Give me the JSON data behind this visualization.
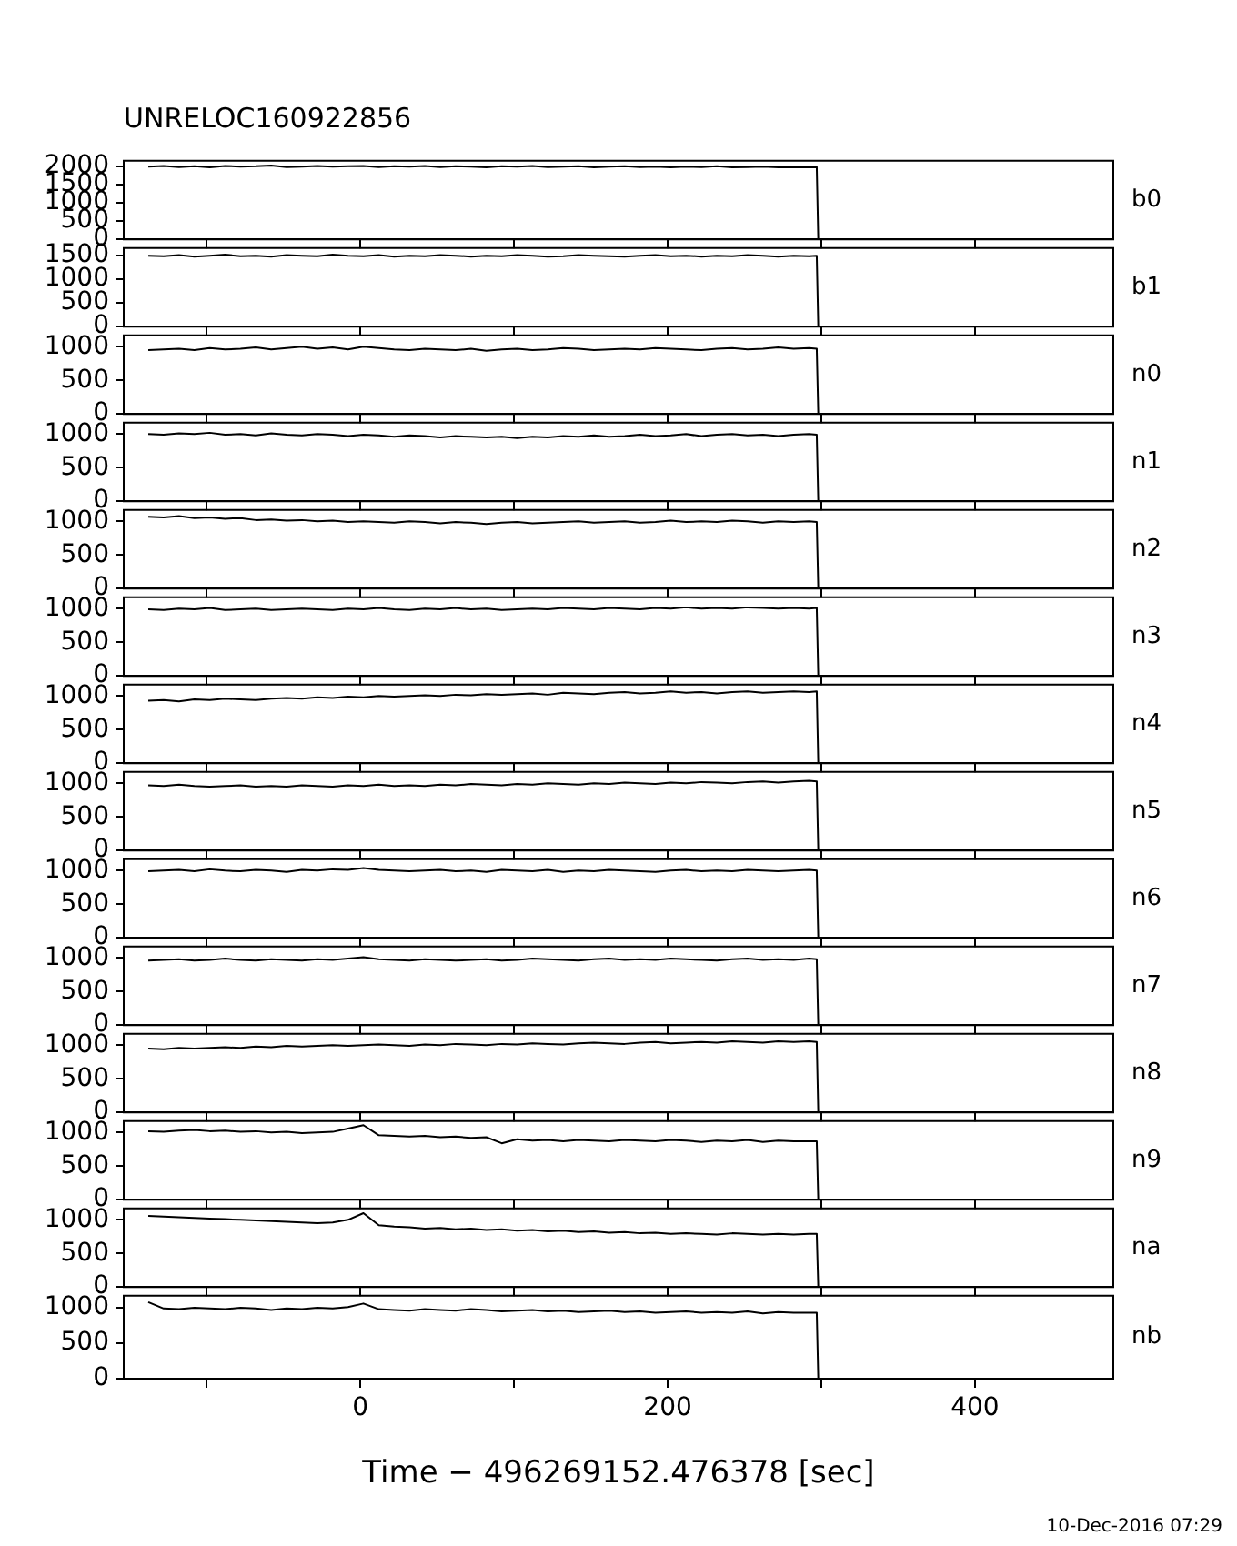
{
  "chart_data": [
    {
      "type": "line",
      "title": "UNRELOC160922856",
      "x": [
        -138,
        -128,
        -118,
        -108,
        -98,
        -88,
        -78,
        -68,
        -58,
        -48,
        -38,
        -28,
        -18,
        -8,
        2,
        12,
        22,
        32,
        42,
        52,
        62,
        72,
        82,
        92,
        102,
        112,
        122,
        132,
        142,
        152,
        162,
        172,
        182,
        192,
        202,
        212,
        222,
        232,
        242,
        252,
        262,
        272,
        282,
        292,
        297,
        298,
        476
      ],
      "xlim": [
        -154,
        490
      ],
      "xticks": [
        {
          "value": -100,
          "label": null
        },
        {
          "value": 0,
          "label": null
        },
        {
          "value": 100,
          "label": null
        },
        {
          "value": 200,
          "label": null
        },
        {
          "value": 300,
          "label": null
        },
        {
          "value": 400,
          "label": null
        }
      ],
      "ylim": [
        0,
        2150
      ],
      "yticks": [
        0,
        500,
        1000,
        1500,
        2000
      ],
      "tick_labels": "y",
      "series": [
        {
          "name": "b0",
          "color": "#000000",
          "values": [
            1990,
            2010,
            1980,
            2000,
            1970,
            2010,
            1990,
            2000,
            2020,
            1980,
            1990,
            2010,
            1990,
            2000,
            2010,
            1980,
            2000,
            1990,
            2010,
            1980,
            2000,
            1990,
            1970,
            2000,
            1990,
            2010,
            1980,
            1990,
            2000,
            1970,
            1990,
            2000,
            1980,
            1990,
            1970,
            1990,
            1980,
            2000,
            1970,
            1980,
            1990,
            1970,
            1980,
            1970,
            1980,
            0,
            0
          ]
        }
      ]
    },
    {
      "type": "line",
      "x": [
        -138,
        -128,
        -118,
        -108,
        -98,
        -88,
        -78,
        -68,
        -58,
        -48,
        -38,
        -28,
        -18,
        -8,
        2,
        12,
        22,
        32,
        42,
        52,
        62,
        72,
        82,
        92,
        102,
        112,
        122,
        132,
        142,
        152,
        162,
        172,
        182,
        192,
        202,
        212,
        222,
        232,
        242,
        252,
        262,
        272,
        282,
        292,
        297,
        298,
        476
      ],
      "xlim": [
        -154,
        490
      ],
      "xticks": [
        {
          "value": -100,
          "label": null
        },
        {
          "value": 0,
          "label": null
        },
        {
          "value": 100,
          "label": null
        },
        {
          "value": 200,
          "label": null
        },
        {
          "value": 300,
          "label": null
        },
        {
          "value": 400,
          "label": null
        }
      ],
      "ylim": [
        0,
        1660
      ],
      "yticks": [
        0,
        500,
        1000,
        1500
      ],
      "tick_labels": "y",
      "series": [
        {
          "name": "b1",
          "color": "#000000",
          "values": [
            1500,
            1490,
            1510,
            1480,
            1500,
            1520,
            1490,
            1500,
            1480,
            1510,
            1500,
            1490,
            1520,
            1500,
            1490,
            1510,
            1480,
            1500,
            1490,
            1510,
            1500,
            1480,
            1500,
            1490,
            1510,
            1500,
            1480,
            1490,
            1510,
            1500,
            1490,
            1480,
            1500,
            1510,
            1490,
            1500,
            1480,
            1500,
            1490,
            1510,
            1500,
            1480,
            1500,
            1490,
            1500,
            0,
            0
          ]
        }
      ]
    },
    {
      "type": "line",
      "x": [
        -138,
        -128,
        -118,
        -108,
        -98,
        -88,
        -78,
        -68,
        -58,
        -48,
        -38,
        -28,
        -18,
        -8,
        2,
        12,
        22,
        32,
        42,
        52,
        62,
        72,
        82,
        92,
        102,
        112,
        122,
        132,
        142,
        152,
        162,
        172,
        182,
        192,
        202,
        212,
        222,
        232,
        242,
        252,
        262,
        272,
        282,
        292,
        297,
        298,
        476
      ],
      "xlim": [
        -154,
        490
      ],
      "xticks": [
        {
          "value": -100,
          "label": null
        },
        {
          "value": 0,
          "label": null
        },
        {
          "value": 100,
          "label": null
        },
        {
          "value": 200,
          "label": null
        },
        {
          "value": 300,
          "label": null
        },
        {
          "value": 400,
          "label": null
        }
      ],
      "ylim": [
        0,
        1170
      ],
      "yticks": [
        0,
        500,
        1000
      ],
      "tick_labels": "y",
      "series": [
        {
          "name": "n0",
          "color": "#000000",
          "values": [
            950,
            960,
            970,
            950,
            980,
            960,
            970,
            990,
            960,
            980,
            1000,
            970,
            990,
            960,
            1000,
            980,
            960,
            950,
            970,
            960,
            950,
            970,
            940,
            960,
            970,
            950,
            960,
            980,
            970,
            950,
            960,
            970,
            960,
            980,
            970,
            960,
            950,
            970,
            980,
            960,
            970,
            990,
            970,
            980,
            970,
            0,
            0
          ]
        }
      ]
    },
    {
      "type": "line",
      "x": [
        -138,
        -128,
        -118,
        -108,
        -98,
        -88,
        -78,
        -68,
        -58,
        -48,
        -38,
        -28,
        -18,
        -8,
        2,
        12,
        22,
        32,
        42,
        52,
        62,
        72,
        82,
        92,
        102,
        112,
        122,
        132,
        142,
        152,
        162,
        172,
        182,
        192,
        202,
        212,
        222,
        232,
        242,
        252,
        262,
        272,
        282,
        292,
        297,
        298,
        476
      ],
      "xlim": [
        -154,
        490
      ],
      "xticks": [
        {
          "value": -100,
          "label": null
        },
        {
          "value": 0,
          "label": null
        },
        {
          "value": 100,
          "label": null
        },
        {
          "value": 200,
          "label": null
        },
        {
          "value": 300,
          "label": null
        },
        {
          "value": 400,
          "label": null
        }
      ],
      "ylim": [
        0,
        1170
      ],
      "yticks": [
        0,
        500,
        1000
      ],
      "tick_labels": "y",
      "series": [
        {
          "name": "n1",
          "color": "#000000",
          "values": [
            1000,
            990,
            1010,
            1000,
            1020,
            990,
            1000,
            980,
            1010,
            990,
            980,
            1000,
            990,
            970,
            990,
            980,
            960,
            980,
            970,
            950,
            970,
            960,
            950,
            960,
            940,
            960,
            950,
            970,
            960,
            980,
            960,
            970,
            990,
            970,
            980,
            1000,
            970,
            990,
            1000,
            980,
            990,
            970,
            990,
            1000,
            990,
            0,
            0
          ]
        }
      ]
    },
    {
      "type": "line",
      "x": [
        -138,
        -128,
        -118,
        -108,
        -98,
        -88,
        -78,
        -68,
        -58,
        -48,
        -38,
        -28,
        -18,
        -8,
        2,
        12,
        22,
        32,
        42,
        52,
        62,
        72,
        82,
        92,
        102,
        112,
        122,
        132,
        142,
        152,
        162,
        172,
        182,
        192,
        202,
        212,
        222,
        232,
        242,
        252,
        262,
        272,
        282,
        292,
        297,
        298,
        476
      ],
      "xlim": [
        -154,
        490
      ],
      "xticks": [
        {
          "value": -100,
          "label": null
        },
        {
          "value": 0,
          "label": null
        },
        {
          "value": 100,
          "label": null
        },
        {
          "value": 200,
          "label": null
        },
        {
          "value": 300,
          "label": null
        },
        {
          "value": 400,
          "label": null
        }
      ],
      "ylim": [
        0,
        1170
      ],
      "yticks": [
        0,
        500,
        1000
      ],
      "tick_labels": "y",
      "series": [
        {
          "name": "n2",
          "color": "#000000",
          "values": [
            1070,
            1060,
            1080,
            1050,
            1060,
            1040,
            1050,
            1020,
            1030,
            1010,
            1020,
            1000,
            1010,
            990,
            1000,
            990,
            980,
            1000,
            990,
            970,
            990,
            980,
            960,
            980,
            990,
            970,
            980,
            990,
            1000,
            980,
            990,
            1000,
            980,
            990,
            1010,
            990,
            1000,
            990,
            1010,
            1000,
            980,
            1000,
            990,
            1000,
            990,
            0,
            0
          ]
        }
      ]
    },
    {
      "type": "line",
      "x": [
        -138,
        -128,
        -118,
        -108,
        -98,
        -88,
        -78,
        -68,
        -58,
        -48,
        -38,
        -28,
        -18,
        -8,
        2,
        12,
        22,
        32,
        42,
        52,
        62,
        72,
        82,
        92,
        102,
        112,
        122,
        132,
        142,
        152,
        162,
        172,
        182,
        192,
        202,
        212,
        222,
        232,
        242,
        252,
        262,
        272,
        282,
        292,
        297,
        298,
        476
      ],
      "xlim": [
        -154,
        490
      ],
      "xticks": [
        {
          "value": -100,
          "label": null
        },
        {
          "value": 0,
          "label": null
        },
        {
          "value": 100,
          "label": null
        },
        {
          "value": 200,
          "label": null
        },
        {
          "value": 300,
          "label": null
        },
        {
          "value": 400,
          "label": null
        }
      ],
      "ylim": [
        0,
        1170
      ],
      "yticks": [
        0,
        500,
        1000
      ],
      "tick_labels": "y",
      "series": [
        {
          "name": "n3",
          "color": "#000000",
          "values": [
            990,
            980,
            1000,
            990,
            1010,
            980,
            990,
            1000,
            980,
            990,
            1000,
            990,
            980,
            1000,
            990,
            1010,
            990,
            980,
            1000,
            990,
            1010,
            990,
            1000,
            980,
            990,
            1000,
            990,
            1010,
            1000,
            990,
            1010,
            1000,
            990,
            1010,
            1000,
            1020,
            1000,
            1010,
            1000,
            1020,
            1010,
            1000,
            1010,
            1000,
            1010,
            0,
            0
          ]
        }
      ]
    },
    {
      "type": "line",
      "x": [
        -138,
        -128,
        -118,
        -108,
        -98,
        -88,
        -78,
        -68,
        -58,
        -48,
        -38,
        -28,
        -18,
        -8,
        2,
        12,
        22,
        32,
        42,
        52,
        62,
        72,
        82,
        92,
        102,
        112,
        122,
        132,
        142,
        152,
        162,
        172,
        182,
        192,
        202,
        212,
        222,
        232,
        242,
        252,
        262,
        272,
        282,
        292,
        297,
        298,
        476
      ],
      "xlim": [
        -154,
        490
      ],
      "xticks": [
        {
          "value": -100,
          "label": null
        },
        {
          "value": 0,
          "label": null
        },
        {
          "value": 100,
          "label": null
        },
        {
          "value": 200,
          "label": null
        },
        {
          "value": 300,
          "label": null
        },
        {
          "value": 400,
          "label": null
        }
      ],
      "ylim": [
        0,
        1170
      ],
      "yticks": [
        0,
        500,
        1000
      ],
      "tick_labels": "y",
      "series": [
        {
          "name": "n4",
          "color": "#000000",
          "values": [
            930,
            940,
            920,
            950,
            940,
            960,
            950,
            940,
            960,
            970,
            960,
            980,
            970,
            990,
            980,
            1000,
            990,
            1000,
            1010,
            1000,
            1020,
            1010,
            1030,
            1020,
            1030,
            1040,
            1020,
            1050,
            1040,
            1030,
            1050,
            1060,
            1040,
            1050,
            1070,
            1050,
            1060,
            1040,
            1060,
            1070,
            1050,
            1060,
            1070,
            1060,
            1070,
            0,
            0
          ]
        }
      ]
    },
    {
      "type": "line",
      "x": [
        -138,
        -128,
        -118,
        -108,
        -98,
        -88,
        -78,
        -68,
        -58,
        -48,
        -38,
        -28,
        -18,
        -8,
        2,
        12,
        22,
        32,
        42,
        52,
        62,
        72,
        82,
        92,
        102,
        112,
        122,
        132,
        142,
        152,
        162,
        172,
        182,
        192,
        202,
        212,
        222,
        232,
        242,
        252,
        262,
        272,
        282,
        292,
        297,
        298,
        476
      ],
      "xlim": [
        -154,
        490
      ],
      "xticks": [
        {
          "value": -100,
          "label": null
        },
        {
          "value": 0,
          "label": null
        },
        {
          "value": 100,
          "label": null
        },
        {
          "value": 200,
          "label": null
        },
        {
          "value": 300,
          "label": null
        },
        {
          "value": 400,
          "label": null
        }
      ],
      "ylim": [
        0,
        1170
      ],
      "yticks": [
        0,
        500,
        1000
      ],
      "tick_labels": "y",
      "series": [
        {
          "name": "n5",
          "color": "#000000",
          "values": [
            970,
            960,
            980,
            960,
            950,
            960,
            970,
            950,
            960,
            950,
            970,
            960,
            950,
            970,
            960,
            980,
            960,
            970,
            960,
            980,
            970,
            990,
            980,
            970,
            990,
            980,
            1000,
            990,
            980,
            1000,
            990,
            1010,
            1000,
            990,
            1010,
            1000,
            1020,
            1010,
            1000,
            1020,
            1030,
            1010,
            1030,
            1040,
            1030,
            0,
            0
          ]
        }
      ]
    },
    {
      "type": "line",
      "x": [
        -138,
        -128,
        -118,
        -108,
        -98,
        -88,
        -78,
        -68,
        -58,
        -48,
        -38,
        -28,
        -18,
        -8,
        2,
        12,
        22,
        32,
        42,
        52,
        62,
        72,
        82,
        92,
        102,
        112,
        122,
        132,
        142,
        152,
        162,
        172,
        182,
        192,
        202,
        212,
        222,
        232,
        242,
        252,
        262,
        272,
        282,
        292,
        297,
        298,
        476
      ],
      "xlim": [
        -154,
        490
      ],
      "xticks": [
        {
          "value": -100,
          "label": null
        },
        {
          "value": 0,
          "label": null
        },
        {
          "value": 100,
          "label": null
        },
        {
          "value": 200,
          "label": null
        },
        {
          "value": 300,
          "label": null
        },
        {
          "value": 400,
          "label": null
        }
      ],
      "ylim": [
        0,
        1170
      ],
      "yticks": [
        0,
        500,
        1000
      ],
      "tick_labels": "y",
      "series": [
        {
          "name": "n6",
          "color": "#000000",
          "values": [
            990,
            1000,
            1010,
            990,
            1020,
            1000,
            990,
            1010,
            1000,
            980,
            1010,
            1000,
            1020,
            1010,
            1040,
            1010,
            1000,
            990,
            1000,
            1010,
            990,
            1000,
            980,
            1010,
            1000,
            990,
            1010,
            980,
            1000,
            990,
            1010,
            1000,
            990,
            980,
            1000,
            1010,
            990,
            1000,
            990,
            1010,
            1000,
            990,
            1000,
            1010,
            1000,
            0,
            0
          ]
        }
      ]
    },
    {
      "type": "line",
      "x": [
        -138,
        -128,
        -118,
        -108,
        -98,
        -88,
        -78,
        -68,
        -58,
        -48,
        -38,
        -28,
        -18,
        -8,
        2,
        12,
        22,
        32,
        42,
        52,
        62,
        72,
        82,
        92,
        102,
        112,
        122,
        132,
        142,
        152,
        162,
        172,
        182,
        192,
        202,
        212,
        222,
        232,
        242,
        252,
        262,
        272,
        282,
        292,
        297,
        298,
        476
      ],
      "xlim": [
        -154,
        490
      ],
      "xticks": [
        {
          "value": -100,
          "label": null
        },
        {
          "value": 0,
          "label": null
        },
        {
          "value": 100,
          "label": null
        },
        {
          "value": 200,
          "label": null
        },
        {
          "value": 300,
          "label": null
        },
        {
          "value": 400,
          "label": null
        }
      ],
      "ylim": [
        0,
        1170
      ],
      "yticks": [
        0,
        500,
        1000
      ],
      "tick_labels": "y",
      "series": [
        {
          "name": "n7",
          "color": "#000000",
          "values": [
            960,
            970,
            980,
            960,
            970,
            990,
            970,
            960,
            980,
            970,
            960,
            980,
            970,
            990,
            1010,
            980,
            970,
            960,
            980,
            970,
            960,
            970,
            980,
            960,
            970,
            990,
            980,
            970,
            960,
            980,
            990,
            970,
            980,
            970,
            990,
            980,
            970,
            960,
            980,
            990,
            970,
            980,
            970,
            990,
            980,
            0,
            0
          ]
        }
      ]
    },
    {
      "type": "line",
      "x": [
        -138,
        -128,
        -118,
        -108,
        -98,
        -88,
        -78,
        -68,
        -58,
        -48,
        -38,
        -28,
        -18,
        -8,
        2,
        12,
        22,
        32,
        42,
        52,
        62,
        72,
        82,
        92,
        102,
        112,
        122,
        132,
        142,
        152,
        162,
        172,
        182,
        192,
        202,
        212,
        222,
        232,
        242,
        252,
        262,
        272,
        282,
        292,
        297,
        298,
        476
      ],
      "xlim": [
        -154,
        490
      ],
      "xticks": [
        {
          "value": -100,
          "label": null
        },
        {
          "value": 0,
          "label": null
        },
        {
          "value": 100,
          "label": null
        },
        {
          "value": 200,
          "label": null
        },
        {
          "value": 300,
          "label": null
        },
        {
          "value": 400,
          "label": null
        }
      ],
      "ylim": [
        0,
        1170
      ],
      "yticks": [
        0,
        500,
        1000
      ],
      "tick_labels": "y",
      "series": [
        {
          "name": "n8",
          "color": "#000000",
          "values": [
            950,
            940,
            960,
            950,
            960,
            970,
            960,
            980,
            970,
            990,
            980,
            990,
            1000,
            990,
            1000,
            1010,
            1000,
            990,
            1010,
            1000,
            1020,
            1010,
            1000,
            1020,
            1010,
            1030,
            1020,
            1010,
            1030,
            1040,
            1030,
            1020,
            1040,
            1050,
            1030,
            1040,
            1050,
            1040,
            1060,
            1050,
            1040,
            1060,
            1050,
            1060,
            1050,
            0,
            0
          ]
        }
      ]
    },
    {
      "type": "line",
      "x": [
        -138,
        -128,
        -118,
        -108,
        -98,
        -88,
        -78,
        -68,
        -58,
        -48,
        -38,
        -28,
        -18,
        -8,
        2,
        12,
        22,
        32,
        42,
        52,
        62,
        72,
        82,
        92,
        102,
        112,
        122,
        132,
        142,
        152,
        162,
        172,
        182,
        192,
        202,
        212,
        222,
        232,
        242,
        252,
        262,
        272,
        282,
        292,
        297,
        298,
        476
      ],
      "xlim": [
        -154,
        490
      ],
      "xticks": [
        {
          "value": -100,
          "label": null
        },
        {
          "value": 0,
          "label": null
        },
        {
          "value": 100,
          "label": null
        },
        {
          "value": 200,
          "label": null
        },
        {
          "value": 300,
          "label": null
        },
        {
          "value": 400,
          "label": null
        }
      ],
      "ylim": [
        0,
        1170
      ],
      "yticks": [
        0,
        500,
        1000
      ],
      "tick_labels": "y",
      "series": [
        {
          "name": "n9",
          "color": "#000000",
          "values": [
            1020,
            1010,
            1030,
            1040,
            1020,
            1030,
            1010,
            1020,
            1000,
            1010,
            990,
            1000,
            1010,
            1060,
            1110,
            960,
            950,
            940,
            950,
            930,
            940,
            920,
            930,
            840,
            900,
            880,
            890,
            870,
            890,
            880,
            870,
            890,
            880,
            870,
            890,
            880,
            860,
            880,
            870,
            890,
            860,
            880,
            870,
            870,
            870,
            0,
            0
          ]
        }
      ]
    },
    {
      "type": "line",
      "x": [
        -138,
        -128,
        -118,
        -108,
        -98,
        -88,
        -78,
        -68,
        -58,
        -48,
        -38,
        -28,
        -18,
        -8,
        2,
        12,
        22,
        32,
        42,
        52,
        62,
        72,
        82,
        92,
        102,
        112,
        122,
        132,
        142,
        152,
        162,
        172,
        182,
        192,
        202,
        212,
        222,
        232,
        242,
        252,
        262,
        272,
        282,
        292,
        297,
        298,
        476
      ],
      "xlim": [
        -154,
        490
      ],
      "xticks": [
        {
          "value": -100,
          "label": null
        },
        {
          "value": 0,
          "label": null
        },
        {
          "value": 100,
          "label": null
        },
        {
          "value": 200,
          "label": null
        },
        {
          "value": 300,
          "label": null
        },
        {
          "value": 400,
          "label": null
        }
      ],
      "ylim": [
        0,
        1170
      ],
      "yticks": [
        0,
        500,
        1000
      ],
      "tick_labels": "y",
      "series": [
        {
          "name": "na",
          "color": "#000000",
          "values": [
            1060,
            1050,
            1040,
            1030,
            1020,
            1010,
            1000,
            990,
            980,
            970,
            960,
            950,
            960,
            1000,
            1100,
            920,
            900,
            890,
            870,
            880,
            860,
            870,
            850,
            860,
            840,
            850,
            830,
            840,
            820,
            830,
            810,
            820,
            800,
            810,
            790,
            800,
            790,
            780,
            800,
            790,
            780,
            790,
            780,
            790,
            790,
            0,
            0
          ]
        }
      ]
    },
    {
      "type": "line",
      "xlabel": "Time − 496269152.476378 [sec]",
      "annotations": [
        "10-Dec-2016 07:29"
      ],
      "x": [
        -138,
        -128,
        -118,
        -108,
        -98,
        -88,
        -78,
        -68,
        -58,
        -48,
        -38,
        -28,
        -18,
        -8,
        2,
        12,
        22,
        32,
        42,
        52,
        62,
        72,
        82,
        92,
        102,
        112,
        122,
        132,
        142,
        152,
        162,
        172,
        182,
        192,
        202,
        212,
        222,
        232,
        242,
        252,
        262,
        272,
        282,
        292,
        297,
        298,
        476
      ],
      "xlim": [
        -154,
        490
      ],
      "xticks": [
        {
          "value": -100,
          "label": null
        },
        0,
        {
          "value": 100,
          "label": null
        },
        200,
        {
          "value": 300,
          "label": null
        },
        400
      ],
      "ylim": [
        0,
        1170
      ],
      "yticks": [
        0,
        500,
        1000
      ],
      "series": [
        {
          "name": "nb",
          "color": "#000000",
          "values": [
            1080,
            990,
            980,
            1000,
            990,
            980,
            1000,
            990,
            970,
            990,
            980,
            1000,
            990,
            1010,
            1060,
            980,
            970,
            960,
            980,
            970,
            960,
            980,
            970,
            950,
            960,
            970,
            950,
            960,
            940,
            950,
            960,
            940,
            950,
            930,
            940,
            950,
            930,
            940,
            930,
            950,
            920,
            940,
            930,
            930,
            930,
            0,
            0
          ]
        }
      ]
    }
  ]
}
